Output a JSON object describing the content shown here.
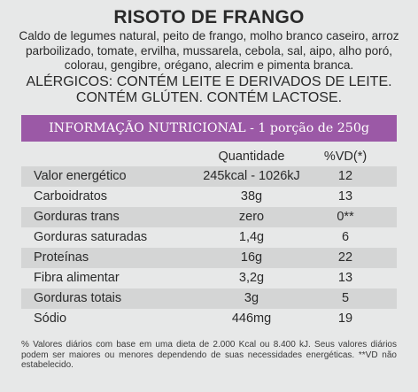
{
  "title": "RISOTO DE FRANGO",
  "ingredients": "Caldo de legumes natural, peito de frango, molho branco caseiro, arroz parboilizado, tomate, ervilha, mussarela, cebola, sal, aipo, alho poró, colorau, gengibre, orégano, alecrim e pimenta branca.",
  "allergens": {
    "line1": "ALÉRGICOS: CONTÉM LEITE E DERIVADOS DE LEITE.",
    "line2": "CONTÉM GLÚTEN. CONTÉM LACTOSE."
  },
  "nutrition": {
    "header": "INFORMAÇÃO NUTRICIONAL - 1 porção de 250g",
    "col_quantity": "Quantidade",
    "col_vd": "%VD(*)",
    "rows": [
      {
        "name": "Valor energético",
        "quantity": "245kcal - 1026kJ",
        "vd": "12"
      },
      {
        "name": "Carboidratos",
        "quantity": "38g",
        "vd": "13"
      },
      {
        "name": "Gorduras trans",
        "quantity": "zero",
        "vd": "0**"
      },
      {
        "name": "Gorduras saturadas",
        "quantity": "1,4g",
        "vd": "6"
      },
      {
        "name": "Proteínas",
        "quantity": "16g",
        "vd": "22"
      },
      {
        "name": "Fibra alimentar",
        "quantity": "3,2g",
        "vd": "13"
      },
      {
        "name": "Gorduras totais",
        "quantity": "3g",
        "vd": "5"
      },
      {
        "name": "Sódio",
        "quantity": "446mg",
        "vd": "19"
      }
    ]
  },
  "footnote": "% Valores diários com base em uma dieta de 2.000 Kcal ou 8.400 kJ. Seus valores diários podem ser maiores ou menores dependendo de suas necessidades energéticas. **VD não estabelecido."
}
